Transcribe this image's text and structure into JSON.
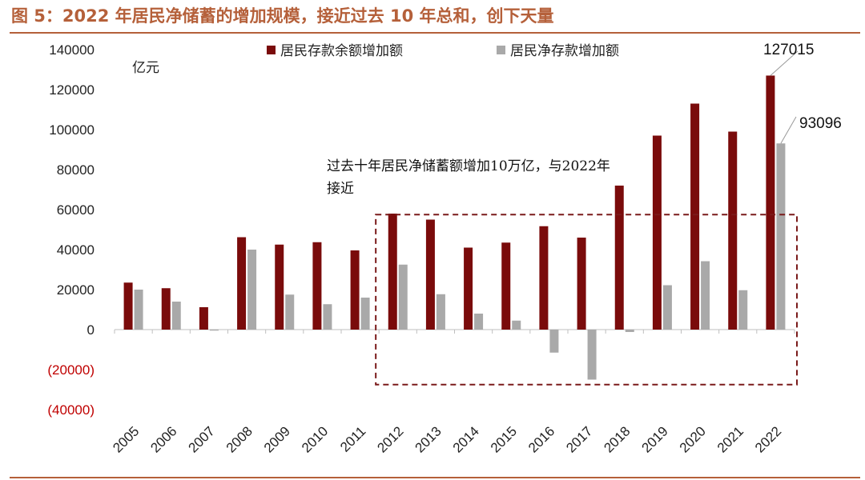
{
  "figure": {
    "title": "图 5：2022 年居民净储蓄的增加规模，接近过去 10 年总和，创下天量"
  },
  "colors": {
    "title": "#b5603a",
    "rule": "#b5603a",
    "series_deposit": "#7a0b0b",
    "series_net": "#a9a9a9",
    "negative_tick": "#c00000",
    "highlight_box": "#7a1a1a"
  },
  "chart_data": {
    "type": "bar",
    "unit_label": "亿元",
    "categories": [
      "2005",
      "2006",
      "2007",
      "2008",
      "2009",
      "2010",
      "2011",
      "2012",
      "2013",
      "2014",
      "2015",
      "2016",
      "2017",
      "2018",
      "2019",
      "2020",
      "2021",
      "2022"
    ],
    "series": [
      {
        "name": "居民存款余额增加额",
        "color": "#7a0b0b",
        "values": [
          23500,
          20700,
          11200,
          46200,
          42500,
          43700,
          39600,
          58000,
          55000,
          41000,
          43500,
          51700,
          46000,
          72000,
          97000,
          113000,
          99000,
          127015
        ]
      },
      {
        "name": "居民净存款增加额",
        "color": "#a9a9a9",
        "values": [
          20000,
          14000,
          -500,
          40000,
          17500,
          12700,
          16000,
          32500,
          17700,
          8000,
          4500,
          -11500,
          -25000,
          -1200,
          22200,
          34200,
          19700,
          93096
        ]
      }
    ],
    "ylim": [
      -40000,
      140000
    ],
    "yticks": [
      {
        "value": 140000,
        "label": "140000"
      },
      {
        "value": 120000,
        "label": "120000"
      },
      {
        "value": 100000,
        "label": "100000"
      },
      {
        "value": 80000,
        "label": "80000"
      },
      {
        "value": 60000,
        "label": "60000"
      },
      {
        "value": 40000,
        "label": "40000"
      },
      {
        "value": 20000,
        "label": "20000"
      },
      {
        "value": 0,
        "label": "0"
      },
      {
        "value": -20000,
        "label": "(20000)"
      },
      {
        "value": -40000,
        "label": "(40000)"
      }
    ],
    "grid": false,
    "legend_position": "top",
    "annotations": {
      "text_lines": [
        "过去十年居民净储蓄额增加10万亿，与2022年",
        "接近"
      ],
      "highlight_from": "2012",
      "highlight_to": "2022",
      "highlight_ylim": [
        -27500,
        57500
      ],
      "callouts": [
        {
          "series": 0,
          "category": "2022",
          "label": "127015"
        },
        {
          "series": 1,
          "category": "2022",
          "label": "93096"
        }
      ]
    }
  }
}
